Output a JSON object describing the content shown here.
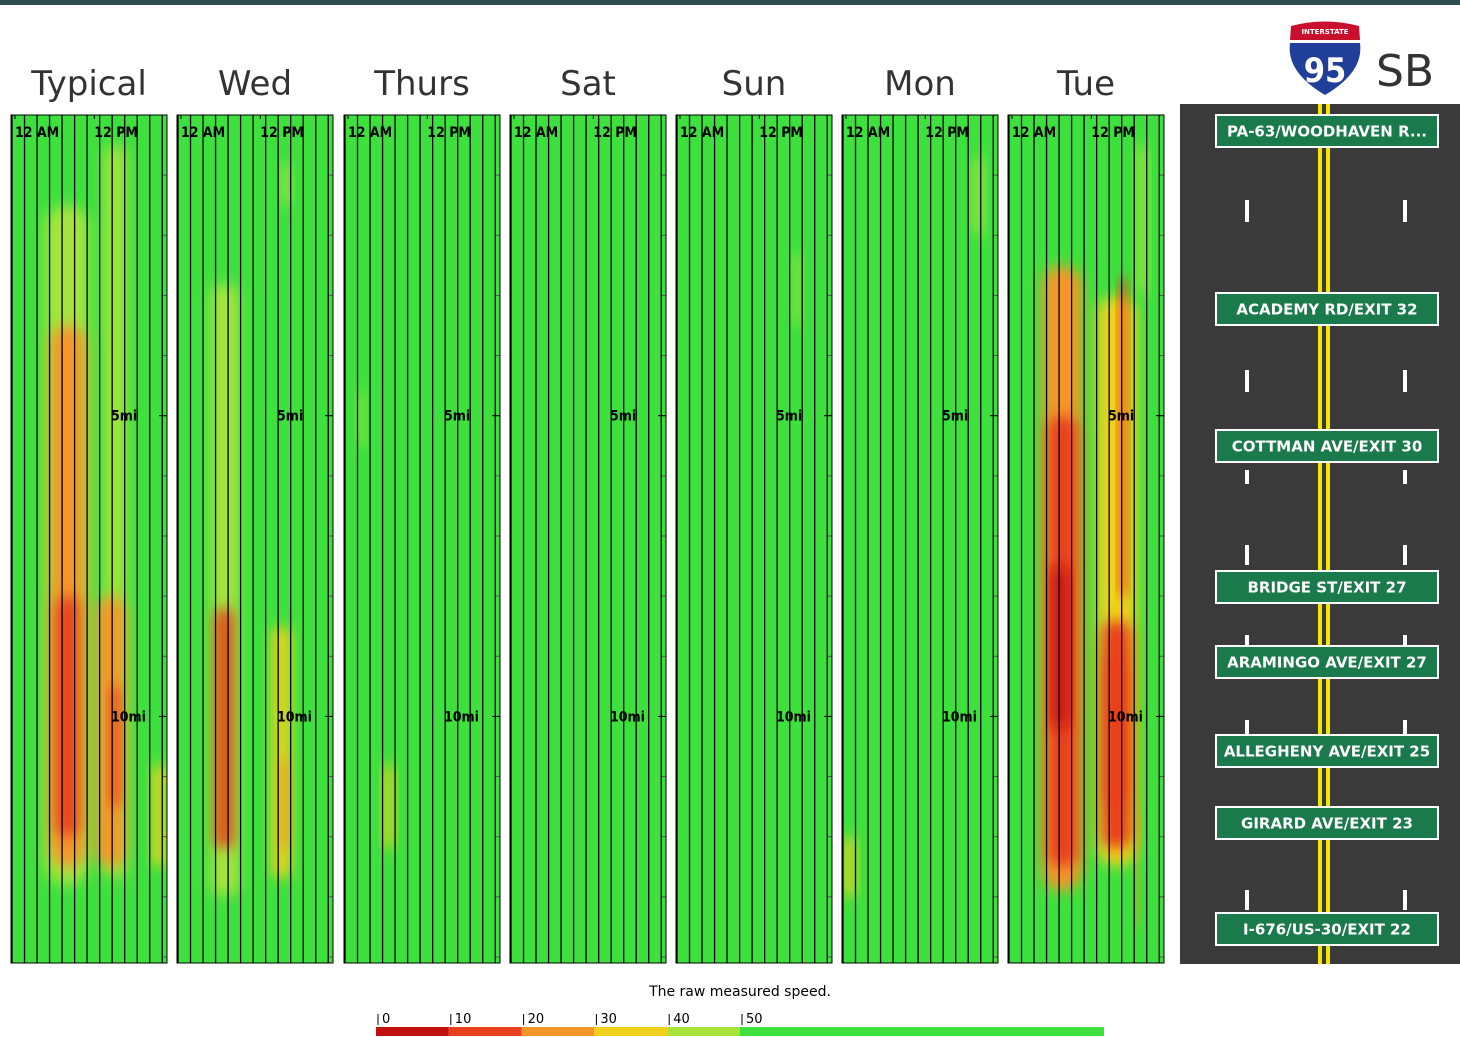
{
  "shield": {
    "top": "INTERSTATE",
    "number": "95"
  },
  "direction": "SB",
  "chart_data": [
    {
      "type": "heatmap",
      "title": "Typical",
      "xlim": [
        -0.6,
        23
      ],
      "ylim": [
        0,
        14.1
      ],
      "xticks": [
        {
          "value": 0,
          "label": "12 AM"
        },
        {
          "value": 12,
          "label": "12 PM"
        }
      ],
      "yticks": [
        {
          "value": 5,
          "label": "5mi"
        },
        {
          "value": 10,
          "label": "10mi"
        }
      ],
      "zones": [
        {
          "hours": [
            4.5,
            11.2
          ],
          "miles": [
            1.5,
            12.8
          ],
          "speed": 42
        },
        {
          "hours": [
            5.4,
            10.6
          ],
          "miles": [
            3.5,
            12.5
          ],
          "speed": 28
        },
        {
          "hours": [
            6.2,
            9.6
          ],
          "miles": [
            8,
            12
          ],
          "speed": 12
        },
        {
          "hours": [
            13.5,
            16.8
          ],
          "miles": [
            0.5,
            12.7
          ],
          "speed": 42
        },
        {
          "hours": [
            12.3,
            16.6
          ],
          "miles": [
            8,
            12.5
          ],
          "speed": 28
        },
        {
          "hours": [
            14.4,
            15.9
          ],
          "miles": [
            9.5,
            11.5
          ],
          "speed": 18
        },
        {
          "hours": [
            20.8,
            22.9
          ],
          "miles": [
            10.8,
            12.5
          ],
          "speed": 35
        }
      ]
    },
    {
      "type": "heatmap",
      "title": "Wed",
      "xlim": [
        -0.6,
        23
      ],
      "ylim": [
        0,
        14.1
      ],
      "xticks": [
        {
          "value": 0,
          "label": "12 AM"
        },
        {
          "value": 12,
          "label": "12 PM"
        }
      ],
      "yticks": [
        {
          "value": 5,
          "label": "5mi"
        },
        {
          "value": 10,
          "label": "10mi"
        }
      ],
      "zones": [
        {
          "hours": [
            4.5,
            8.8
          ],
          "miles": [
            2.8,
            13
          ],
          "speed": 42
        },
        {
          "hours": [
            5.2,
            7.9
          ],
          "miles": [
            8.2,
            12.2
          ],
          "speed": 15
        },
        {
          "hours": [
            13.8,
            16.6
          ],
          "miles": [
            8.5,
            12.7
          ],
          "speed": 30
        },
        {
          "hours": [
            15,
            16.3
          ],
          "miles": [
            10.7,
            12.2
          ],
          "speed": 20
        },
        {
          "hours": [
            15.2,
            16.6
          ],
          "miles": [
            0.8,
            1.5
          ],
          "speed": 45
        }
      ]
    },
    {
      "type": "heatmap",
      "title": "Thurs",
      "xlim": [
        -0.6,
        23
      ],
      "ylim": [
        0,
        14.1
      ],
      "xticks": [
        {
          "value": 0,
          "label": "12 AM"
        },
        {
          "value": 12,
          "label": "12 PM"
        }
      ],
      "yticks": [
        {
          "value": 5,
          "label": "5mi"
        },
        {
          "value": 10,
          "label": "10mi"
        }
      ],
      "zones": [
        {
          "hours": [
            5.4,
            6.9
          ],
          "miles": [
            10.8,
            12.2
          ],
          "speed": 35
        },
        {
          "hours": [
            1.5,
            2.5
          ],
          "miles": [
            4.6,
            5.5
          ],
          "speed": 45
        }
      ]
    },
    {
      "type": "heatmap",
      "title": "Sat",
      "xlim": [
        -0.6,
        23
      ],
      "ylim": [
        0,
        14.1
      ],
      "xticks": [
        {
          "value": 0,
          "label": "12 AM"
        },
        {
          "value": 12,
          "label": "12 PM"
        }
      ],
      "yticks": [
        {
          "value": 5,
          "label": "5mi"
        },
        {
          "value": 10,
          "label": "10mi"
        }
      ],
      "zones": []
    },
    {
      "type": "heatmap",
      "title": "Sun",
      "xlim": [
        -0.6,
        23
      ],
      "ylim": [
        0,
        14.1
      ],
      "xticks": [
        {
          "value": 0,
          "label": "12 AM"
        },
        {
          "value": 12,
          "label": "12 PM"
        }
      ],
      "yticks": [
        {
          "value": 5,
          "label": "5mi"
        },
        {
          "value": 10,
          "label": "10mi"
        }
      ],
      "zones": [
        {
          "hours": [
            17.2,
            18.3
          ],
          "miles": [
            2.3,
            3.5
          ],
          "speed": 45
        }
      ]
    },
    {
      "type": "heatmap",
      "title": "Mon",
      "xlim": [
        -0.6,
        23
      ],
      "ylim": [
        0,
        14.1
      ],
      "xticks": [
        {
          "value": 0,
          "label": "12 AM"
        },
        {
          "value": 12,
          "label": "12 PM"
        }
      ],
      "yticks": [
        {
          "value": 5,
          "label": "5mi"
        },
        {
          "value": 10,
          "label": "10mi"
        }
      ],
      "zones": [
        {
          "hours": [
            -0.3,
            1.4
          ],
          "miles": [
            12,
            13
          ],
          "speed": 38
        },
        {
          "hours": [
            19.3,
            20.8
          ],
          "miles": [
            0.7,
            2
          ],
          "speed": 45
        }
      ]
    },
    {
      "type": "heatmap",
      "title": "Tue",
      "xlim": [
        -0.6,
        23
      ],
      "ylim": [
        0,
        14.1
      ],
      "xticks": [
        {
          "value": 0,
          "label": "12 AM"
        },
        {
          "value": 12,
          "label": "12 PM"
        }
      ],
      "yticks": [
        {
          "value": 5,
          "label": "5mi"
        },
        {
          "value": 10,
          "label": "10mi"
        }
      ],
      "zones": [
        {
          "hours": [
            4.6,
            10.6
          ],
          "miles": [
            2.5,
            12.9
          ],
          "speed": 25
        },
        {
          "hours": [
            5.4,
            9.9
          ],
          "miles": [
            5,
            12.5
          ],
          "speed": 12
        },
        {
          "hours": [
            6.1,
            8.4
          ],
          "miles": [
            7.5,
            10.2
          ],
          "speed": 5
        },
        {
          "hours": [
            12.9,
            18.9
          ],
          "miles": [
            3,
            12.5
          ],
          "speed": 30
        },
        {
          "hours": [
            13.6,
            18.1
          ],
          "miles": [
            8.4,
            12.2
          ],
          "speed": 15
        },
        {
          "hours": [
            14.4,
            17
          ],
          "miles": [
            9,
            11.5
          ],
          "speed": 10
        },
        {
          "hours": [
            16.2,
            17.4
          ],
          "miles": [
            2.7,
            8
          ],
          "speed": 18
        },
        {
          "hours": [
            18.9,
            20.4
          ],
          "miles": [
            0.5,
            3
          ],
          "speed": 45
        },
        {
          "hours": [
            18.6,
            19.3
          ],
          "miles": [
            11.5,
            13.5
          ],
          "speed": 20
        }
      ]
    }
  ],
  "legend": {
    "title": "The raw measured speed.",
    "range": [
      0,
      100
    ],
    "ticks": [
      0,
      10,
      20,
      30,
      40,
      50
    ],
    "colors": [
      "#c01010",
      "#e8401c",
      "#f5962a",
      "#f0d21e",
      "#a6e43c",
      "#3ee03e"
    ]
  },
  "exits": [
    "PA-63/WOODHAVEN R...",
    "ACADEMY RD/EXIT 32",
    "COTTMAN AVE/EXIT 30",
    "BRIDGE ST/EXIT 27",
    "ARAMINGO AVE/EXIT 27",
    "ALLEGHENY AVE/EXIT 25",
    "GIRARD AVE/EXIT 23",
    "I-676/US-30/EXIT 22"
  ]
}
